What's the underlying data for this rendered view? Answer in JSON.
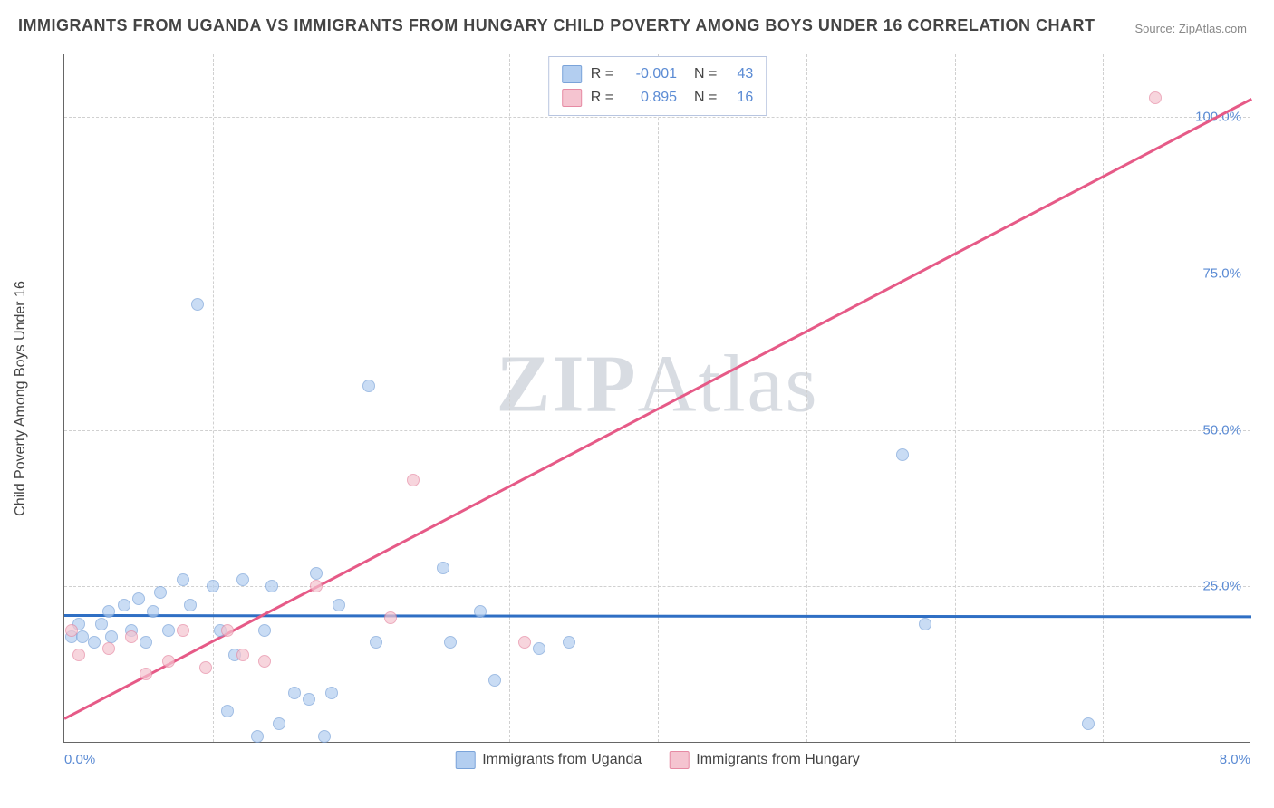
{
  "title": "IMMIGRANTS FROM UGANDA VS IMMIGRANTS FROM HUNGARY CHILD POVERTY AMONG BOYS UNDER 16 CORRELATION CHART",
  "source": "Source: ZipAtlas.com",
  "watermark_left": "ZIP",
  "watermark_right": "Atlas",
  "chart": {
    "type": "scatter",
    "xlim": [
      0,
      8
    ],
    "ylim": [
      0,
      110
    ],
    "xticks": [
      0,
      8
    ],
    "xtick_labels": [
      "0.0%",
      "8.0%"
    ],
    "yticks": [
      25,
      50,
      75,
      100
    ],
    "ytick_labels": [
      "25.0%",
      "50.0%",
      "75.0%",
      "100.0%"
    ],
    "grid_h": [
      25,
      50,
      75,
      100
    ],
    "grid_v": [
      1,
      2,
      3,
      4,
      5,
      6,
      7
    ],
    "ylabel": "Child Poverty Among Boys Under 16",
    "grid_color": "#d0d0d0",
    "tick_color": "#5b8bd4",
    "background_color": "#ffffff",
    "series": [
      {
        "name": "Immigrants from Uganda",
        "color_fill": "#b3cef0",
        "color_stroke": "#7aa3d9",
        "R": "-0.001",
        "N": "43",
        "trend": {
          "x1": 0,
          "y1": 20.5,
          "x2": 8,
          "y2": 20.3,
          "color": "#2f6fc4"
        },
        "points": [
          [
            0.05,
            17
          ],
          [
            0.1,
            19
          ],
          [
            0.12,
            17
          ],
          [
            0.2,
            16
          ],
          [
            0.25,
            19
          ],
          [
            0.3,
            21
          ],
          [
            0.32,
            17
          ],
          [
            0.4,
            22
          ],
          [
            0.45,
            18
          ],
          [
            0.5,
            23
          ],
          [
            0.55,
            16
          ],
          [
            0.6,
            21
          ],
          [
            0.65,
            24
          ],
          [
            0.7,
            18
          ],
          [
            0.8,
            26
          ],
          [
            0.85,
            22
          ],
          [
            0.9,
            70
          ],
          [
            1.0,
            25
          ],
          [
            1.05,
            18
          ],
          [
            1.1,
            5
          ],
          [
            1.15,
            14
          ],
          [
            1.2,
            26
          ],
          [
            1.3,
            1
          ],
          [
            1.35,
            18
          ],
          [
            1.4,
            25
          ],
          [
            1.45,
            3
          ],
          [
            1.55,
            8
          ],
          [
            1.65,
            7
          ],
          [
            1.7,
            27
          ],
          [
            1.75,
            1
          ],
          [
            1.8,
            8
          ],
          [
            1.85,
            22
          ],
          [
            2.05,
            57
          ],
          [
            2.1,
            16
          ],
          [
            2.55,
            28
          ],
          [
            2.6,
            16
          ],
          [
            2.8,
            21
          ],
          [
            2.9,
            10
          ],
          [
            3.2,
            15
          ],
          [
            3.4,
            16
          ],
          [
            5.65,
            46
          ],
          [
            5.8,
            19
          ],
          [
            6.9,
            3
          ]
        ]
      },
      {
        "name": "Immigrants from Hungary",
        "color_fill": "#f5c4d0",
        "color_stroke": "#e68aa3",
        "R": "0.895",
        "N": "16",
        "trend": {
          "x1": 0,
          "y1": 4,
          "x2": 8,
          "y2": 103,
          "color": "#e65a87"
        },
        "points": [
          [
            0.05,
            18
          ],
          [
            0.1,
            14
          ],
          [
            0.3,
            15
          ],
          [
            0.45,
            17
          ],
          [
            0.55,
            11
          ],
          [
            0.7,
            13
          ],
          [
            0.8,
            18
          ],
          [
            0.95,
            12
          ],
          [
            1.1,
            18
          ],
          [
            1.2,
            14
          ],
          [
            1.35,
            13
          ],
          [
            1.7,
            25
          ],
          [
            2.2,
            20
          ],
          [
            2.35,
            42
          ],
          [
            3.1,
            16
          ],
          [
            7.35,
            103
          ]
        ]
      }
    ]
  },
  "legend_bottom": [
    {
      "label": "Immigrants from Uganda",
      "fill": "#b3cef0",
      "stroke": "#7aa3d9"
    },
    {
      "label": "Immigrants from Hungary",
      "fill": "#f5c4d0",
      "stroke": "#e68aa3"
    }
  ]
}
